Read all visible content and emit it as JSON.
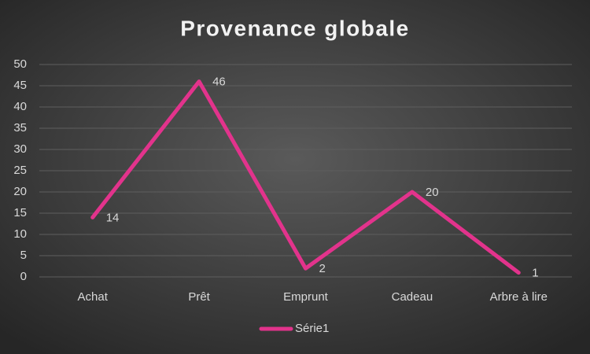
{
  "chart_data": {
    "type": "line",
    "title": "Provenance globale",
    "categories": [
      "Achat",
      "Prêt",
      "Emprunt",
      "Cadeau",
      "Arbre à lire"
    ],
    "series": [
      {
        "name": "Série1",
        "color": "#e2338c",
        "values": [
          14,
          46,
          2,
          20,
          1
        ]
      }
    ],
    "ylim": [
      0,
      50
    ],
    "yticks": [
      0,
      5,
      10,
      15,
      20,
      25,
      30,
      35,
      40,
      45,
      50
    ],
    "grid": true,
    "data_labels": true,
    "legend": "bottom"
  }
}
